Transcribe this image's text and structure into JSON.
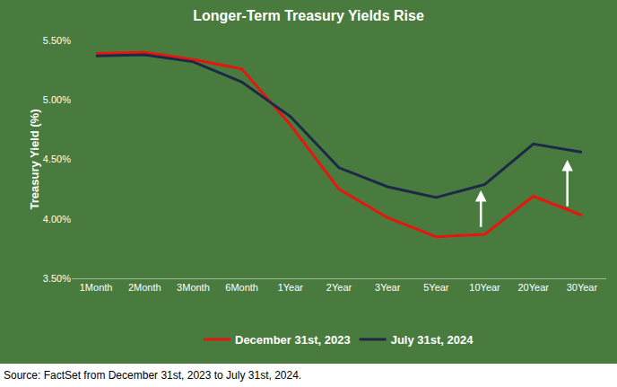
{
  "chart_data": {
    "type": "line",
    "title": "Longer-Term Treasury Yields Rise",
    "y_label": "Treasury Yield (%)",
    "source": "Source: FactSet from December 31st, 2023 to July 31st, 2024.",
    "categories": [
      "1Month",
      "2Month",
      "3Month",
      "6Month",
      "1Year",
      "2Year",
      "3Year",
      "5Year",
      "10Year",
      "20Year",
      "30Year"
    ],
    "series": [
      {
        "name": "December 31st, 2023",
        "color": "#e8150f",
        "values": [
          5.39,
          5.4,
          5.34,
          5.26,
          4.79,
          4.25,
          4.01,
          3.85,
          3.87,
          4.19,
          4.03
        ]
      },
      {
        "name": "July 31st, 2024",
        "color": "#1c2a48",
        "values": [
          5.37,
          5.38,
          5.32,
          5.15,
          4.86,
          4.43,
          4.27,
          4.18,
          4.29,
          4.63,
          4.56
        ]
      }
    ],
    "ylim": [
      3.5,
      5.5
    ],
    "yticks": [
      {
        "value": 3.5,
        "label": "3.50%"
      },
      {
        "value": 4.0,
        "label": "4.00%"
      },
      {
        "value": 4.5,
        "label": "4.50%"
      },
      {
        "value": 5.0,
        "label": "5.00%"
      },
      {
        "value": 5.5,
        "label": "5.50%"
      }
    ],
    "grid": false,
    "legend": "bottom"
  }
}
